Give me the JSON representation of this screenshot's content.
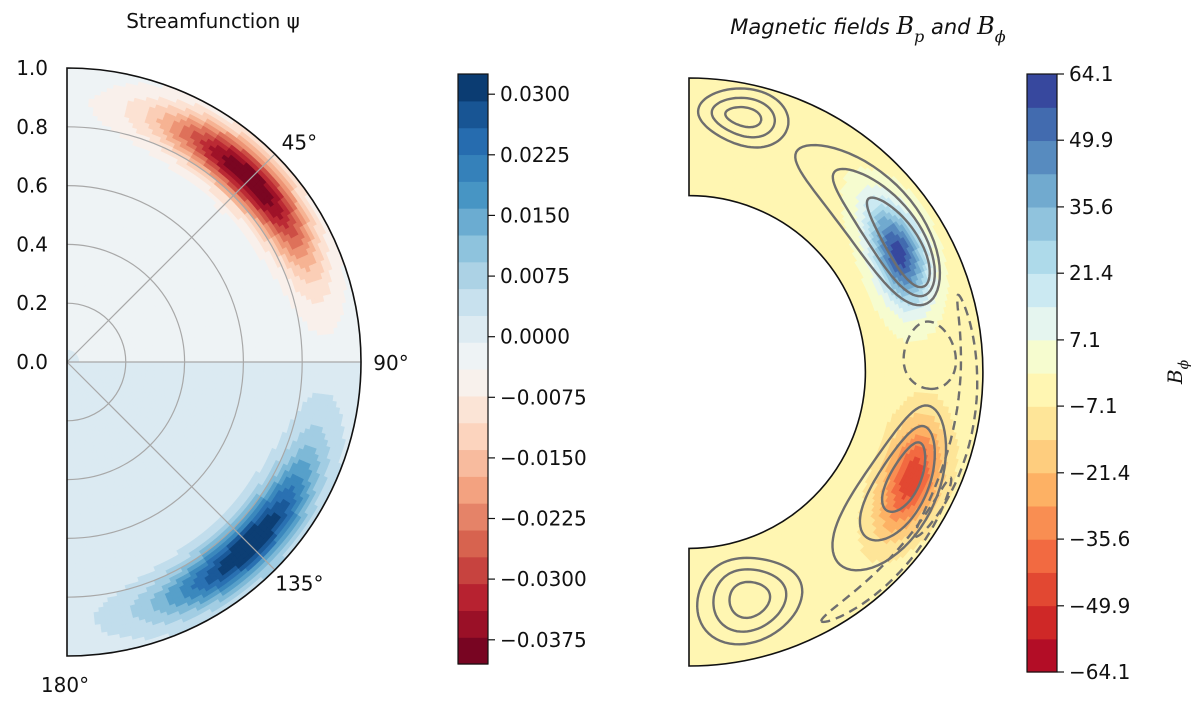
{
  "chart_data": [
    {
      "type": "heatmap",
      "subtype": "polar-half-disk",
      "title": "Streamfunction ψ",
      "radial_ticks": [
        "0.0",
        "0.2",
        "0.4",
        "0.6",
        "0.8",
        "1.0"
      ],
      "radial_values": [
        0.0,
        0.2,
        0.4,
        0.6,
        0.8,
        1.0
      ],
      "angle_ticks": [
        "45°",
        "90°",
        "135°",
        "180°"
      ],
      "angle_values": [
        45,
        90,
        135,
        180
      ],
      "colormap": "RdBu",
      "colorbar_ticks": [
        "0.0300",
        "0.0225",
        "0.0150",
        "0.0075",
        "0.0000",
        "−0.0075",
        "−0.0150",
        "−0.0225",
        "−0.0300",
        "−0.0375"
      ],
      "colorbar_values": [
        0.03,
        0.0225,
        0.015,
        0.0075,
        0.0,
        -0.0075,
        -0.015,
        -0.0225,
        -0.03,
        -0.0375
      ],
      "colorbar_range": [
        -0.0405,
        0.0325
      ],
      "structure": [
        {
          "name": "northern cell",
          "sign": "negative",
          "peak_value": -0.039,
          "peak_angle_deg": 45,
          "peak_radius": 0.88
        },
        {
          "name": "southern cell",
          "sign": "positive",
          "peak_value": 0.032,
          "peak_angle_deg": 135,
          "peak_radius": 0.88
        }
      ]
    },
    {
      "type": "heatmap",
      "subtype": "meridional-shell",
      "title_prefix": "Magnetic fields ",
      "title_b": "B",
      "title_p": "p",
      "title_and": " and ",
      "title_phi": "ϕ",
      "colorbar_label_b": "B",
      "colorbar_label_sub": "ϕ",
      "colormap": "RdYlBu",
      "colorbar_ticks": [
        "64.1",
        "49.9",
        "35.6",
        "21.4",
        "7.1",
        "−7.1",
        "−21.4",
        "−35.6",
        "−49.9",
        "−64.1"
      ],
      "colorbar_values": [
        64.1,
        49.9,
        35.6,
        21.4,
        7.1,
        -7.1,
        -21.4,
        -35.6,
        -49.9,
        -64.1
      ],
      "colorbar_range": [
        -64.1,
        64.1
      ],
      "inner_radius_ratio": 0.6,
      "structure": [
        {
          "name": "positive toroidal band",
          "sign": "positive",
          "peak_value": 64,
          "peak_angle_deg": 60
        },
        {
          "name": "negative toroidal band",
          "sign": "negative",
          "peak_value": -45,
          "peak_angle_deg": 115
        }
      ],
      "overlay": "poloidal field lines (solid = positive, dashed = negative)"
    }
  ],
  "colors": {
    "background": "#ffffff",
    "grid": "#a8a8a8",
    "outline": "#111111",
    "contour": "#6e6e6e"
  }
}
